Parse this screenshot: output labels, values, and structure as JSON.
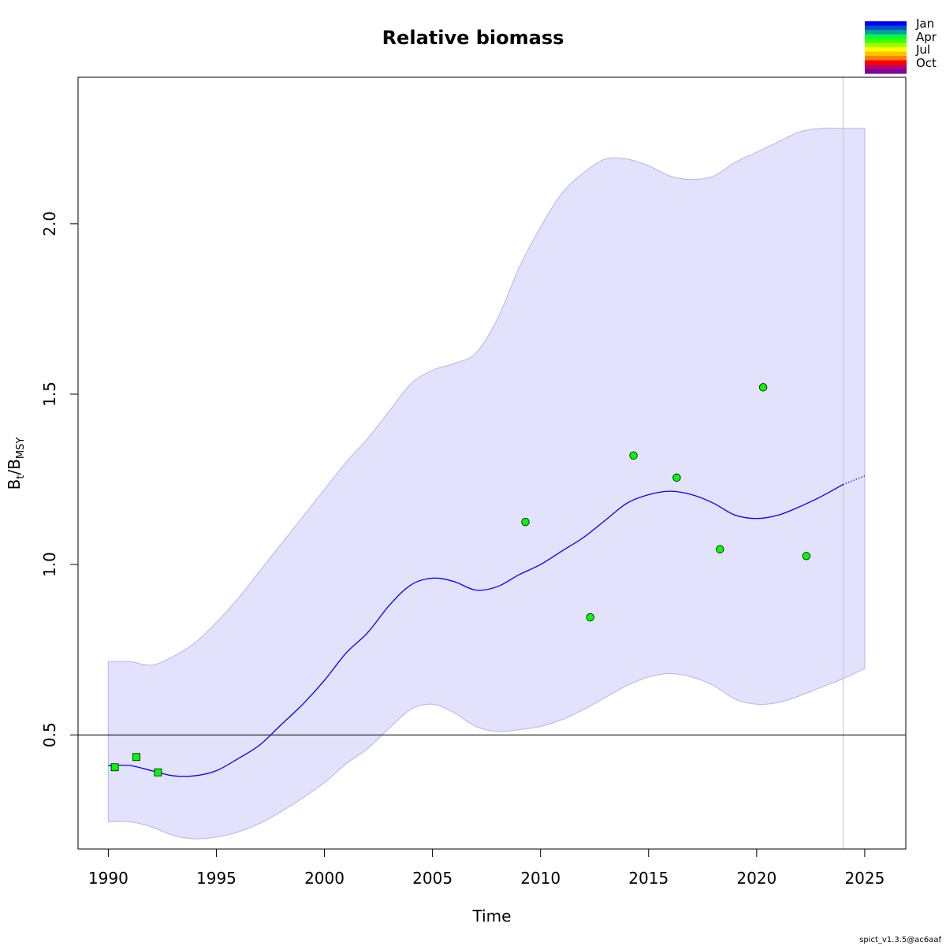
{
  "chart_data": {
    "type": "line",
    "title": "Relative biomass",
    "xlabel": "Time",
    "ylabel": {
      "base": "B",
      "sub1": "t",
      "sep": "/B",
      "sub2": "MSY"
    },
    "xlim": [
      1988.6,
      2026.9
    ],
    "ylim": [
      0.165,
      2.43
    ],
    "x_ticks": [
      "1990",
      "1995",
      "2000",
      "2005",
      "2010",
      "2015",
      "2020",
      "2025"
    ],
    "y_ticks": [
      "0.5",
      "1.0",
      "1.5",
      "2.0"
    ],
    "reference_line": {
      "y": 0.5,
      "color": "#000000"
    },
    "forecast_start": 2024.0,
    "estimate": {
      "color": "#0000ff",
      "x": [
        1990,
        1991,
        1992,
        1993,
        1994,
        1995,
        1996,
        1997,
        1998,
        1999,
        2000,
        2001,
        2002,
        2003,
        2004,
        2005,
        2006,
        2007,
        2008,
        2009,
        2010,
        2011,
        2012,
        2013,
        2014,
        2015,
        2016,
        2017,
        2018,
        2019,
        2020,
        2021,
        2022,
        2023,
        2024
      ],
      "y": [
        0.41,
        0.41,
        0.395,
        0.38,
        0.38,
        0.395,
        0.43,
        0.47,
        0.53,
        0.59,
        0.66,
        0.74,
        0.8,
        0.88,
        0.94,
        0.96,
        0.95,
        0.925,
        0.935,
        0.97,
        1.0,
        1.04,
        1.08,
        1.13,
        1.18,
        1.205,
        1.215,
        1.205,
        1.18,
        1.145,
        1.135,
        1.145,
        1.17,
        1.2,
        1.235
      ]
    },
    "forecast": {
      "x": [
        2024,
        2025
      ],
      "y": [
        1.235,
        1.26
      ],
      "style": "dotted"
    },
    "ci_band": {
      "color": "#e2e2fc",
      "x": [
        1990,
        1991,
        1992,
        1993,
        1994,
        1995,
        1996,
        1997,
        1998,
        1999,
        2000,
        2001,
        2002,
        2003,
        2004,
        2005,
        2006,
        2007,
        2008,
        2009,
        2010,
        2011,
        2012,
        2013,
        2014,
        2015,
        2016,
        2017,
        2018,
        2019,
        2020,
        2021,
        2022,
        2023,
        2024,
        2025
      ],
      "upper": [
        0.715,
        0.715,
        0.705,
        0.73,
        0.77,
        0.83,
        0.9,
        0.98,
        1.06,
        1.14,
        1.22,
        1.3,
        1.37,
        1.45,
        1.53,
        1.57,
        1.59,
        1.62,
        1.72,
        1.87,
        1.99,
        2.09,
        2.15,
        2.19,
        2.19,
        2.17,
        2.14,
        2.13,
        2.14,
        2.18,
        2.21,
        2.24,
        2.27,
        2.28,
        2.28,
        2.28
      ],
      "lower": [
        0.245,
        0.245,
        0.23,
        0.205,
        0.195,
        0.2,
        0.215,
        0.24,
        0.275,
        0.315,
        0.36,
        0.415,
        0.46,
        0.52,
        0.575,
        0.59,
        0.565,
        0.525,
        0.51,
        0.515,
        0.525,
        0.545,
        0.575,
        0.61,
        0.645,
        0.67,
        0.68,
        0.67,
        0.645,
        0.605,
        0.59,
        0.595,
        0.615,
        0.64,
        0.665,
        0.695
      ]
    },
    "observations": [
      {
        "x": 1990.3,
        "y": 0.405,
        "marker": "square",
        "color": "#00ff00"
      },
      {
        "x": 1991.3,
        "y": 0.435,
        "marker": "square",
        "color": "#00ff00"
      },
      {
        "x": 1992.3,
        "y": 0.39,
        "marker": "square",
        "color": "#00ff00"
      },
      {
        "x": 2009.3,
        "y": 1.125,
        "marker": "circle",
        "color": "#00ff00"
      },
      {
        "x": 2012.3,
        "y": 0.845,
        "marker": "circle",
        "color": "#00ff00"
      },
      {
        "x": 2014.3,
        "y": 1.32,
        "marker": "circle",
        "color": "#00ff00"
      },
      {
        "x": 2016.3,
        "y": 1.255,
        "marker": "circle",
        "color": "#00ff00"
      },
      {
        "x": 2018.3,
        "y": 1.045,
        "marker": "circle",
        "color": "#00ff00"
      },
      {
        "x": 2020.3,
        "y": 1.52,
        "marker": "circle",
        "color": "#00ff00"
      },
      {
        "x": 2022.3,
        "y": 1.025,
        "marker": "circle",
        "color": "#00ff00"
      }
    ],
    "season_legend": {
      "labels": [
        "Jan",
        "Apr",
        "Jul",
        "Oct"
      ],
      "colors": [
        "#0000ff",
        "#0050c8",
        "#00a0a0",
        "#00ff40",
        "#40ff00",
        "#a0ff00",
        "#ffff00",
        "#ffc000",
        "#ff8000",
        "#ff0000",
        "#c00060",
        "#8000a0"
      ]
    },
    "footer": "spict_v1.3.5@ac6aaf"
  }
}
